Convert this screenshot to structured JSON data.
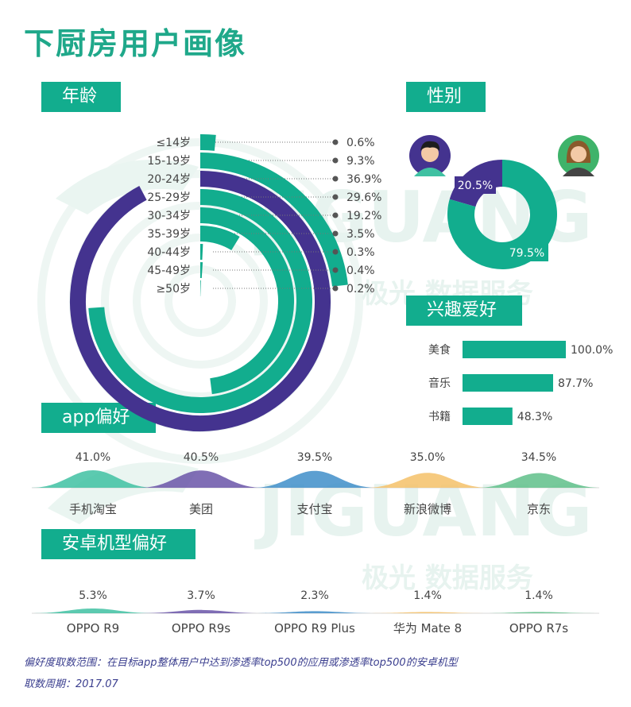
{
  "title": "下厨房用户画像",
  "watermark": {
    "brand": "JIGUANG",
    "tagline": "极光 数据服务"
  },
  "sections": {
    "age": "年龄",
    "gender": "性别",
    "interest": "兴趣爱好",
    "app": "app偏好",
    "phone": "安卓机型偏好"
  },
  "colors": {
    "teal": "#12ad8e",
    "purple": "#44338f"
  },
  "chart_data": [
    {
      "type": "bar",
      "id": "age",
      "title": "年龄",
      "categories": [
        "≤14岁",
        "15-19岁",
        "20-24岁",
        "25-29岁",
        "30-34岁",
        "35-39岁",
        "40-44岁",
        "45-49岁",
        "≥50岁"
      ],
      "values": [
        0.6,
        9.3,
        36.9,
        29.6,
        19.2,
        3.5,
        0.3,
        0.4,
        0.2
      ],
      "labels": [
        "0.6%",
        "9.3%",
        "36.9%",
        "29.6%",
        "19.2%",
        "3.5%",
        "0.3%",
        "0.4%",
        "0.2%"
      ],
      "highlight": "20-24岁"
    },
    {
      "type": "pie",
      "id": "gender",
      "title": "性别",
      "values": [
        20.5,
        79.5
      ],
      "labels": [
        "20.5%",
        "79.5%"
      ],
      "series_colors": [
        "#44338f",
        "#12ad8e"
      ],
      "icons": [
        "male-avatar-icon",
        "female-avatar-icon"
      ]
    },
    {
      "type": "bar",
      "id": "interest",
      "title": "兴趣爱好",
      "categories": [
        "美食",
        "音乐",
        "书籍"
      ],
      "values": [
        100.0,
        87.7,
        48.3
      ],
      "labels": [
        "100.0%",
        "87.7%",
        "48.3%"
      ]
    },
    {
      "type": "area",
      "id": "app",
      "title": "app偏好",
      "categories": [
        "手机淘宝",
        "美团",
        "支付宝",
        "新浪微博",
        "京东"
      ],
      "values": [
        41.0,
        40.5,
        39.5,
        35.0,
        34.5
      ],
      "labels": [
        "41.0%",
        "40.5%",
        "39.5%",
        "35.0%",
        "34.5%"
      ],
      "series_colors": [
        "#3fc1a2",
        "#6a55a8",
        "#3f8ec9",
        "#f5c168",
        "#5fbf8a"
      ]
    },
    {
      "type": "area",
      "id": "phone",
      "title": "安卓机型偏好",
      "categories": [
        "OPPO R9",
        "OPPO R9s",
        "OPPO R9 Plus",
        "华为 Mate 8",
        "OPPO R7s"
      ],
      "values": [
        5.3,
        3.7,
        2.3,
        1.4,
        1.4
      ],
      "labels": [
        "5.3%",
        "3.7%",
        "2.3%",
        "1.4%",
        "1.4%"
      ],
      "series_colors": [
        "#3fc1a2",
        "#6a55a8",
        "#3f8ec9",
        "#f5c168",
        "#5fbf8a"
      ]
    }
  ],
  "footnote": {
    "scope": "偏好度取数范围：在目标app整体用户中达到渗透率top500的应用或渗透率top500的安卓机型",
    "period": "取数周期：2017.07"
  }
}
